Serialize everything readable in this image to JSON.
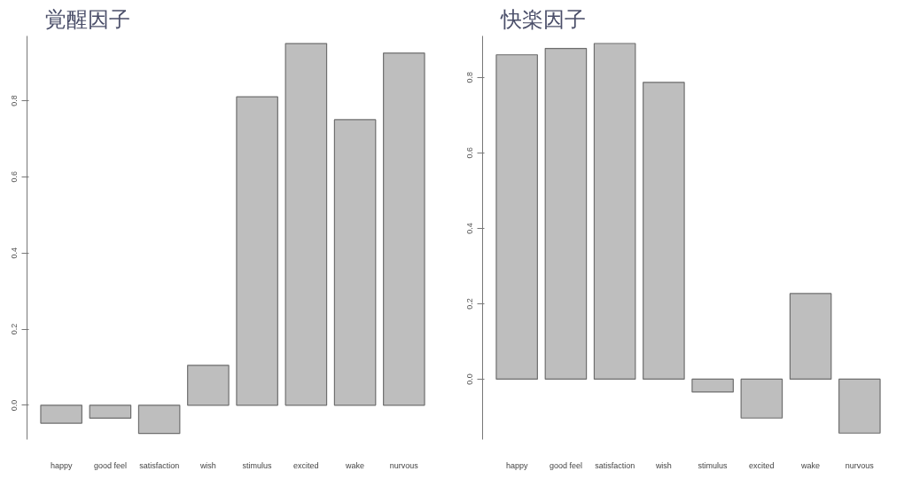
{
  "chart_data": [
    {
      "type": "bar",
      "title": "覚醒因子",
      "categories": [
        "happy",
        "good feel",
        "satisfaction",
        "wish",
        "stimulus",
        "excited",
        "wake",
        "nurvous"
      ],
      "values": [
        -0.047,
        -0.034,
        -0.074,
        0.105,
        0.81,
        0.95,
        0.75,
        0.925
      ],
      "color": "#bebebe",
      "ylim": [
        -0.09,
        0.97
      ],
      "yticks": [
        {
          "value": 0,
          "label": "0.0"
        },
        0.2,
        0.4,
        0.6,
        0.8
      ]
    },
    {
      "type": "bar",
      "title": "快楽因子",
      "categories": [
        "happy",
        "good feel",
        "satisfaction",
        "wish",
        "stimulus",
        "excited",
        "wake",
        "nurvous"
      ],
      "values": [
        0.86,
        0.877,
        0.89,
        0.787,
        -0.034,
        -0.103,
        0.227,
        -0.143
      ],
      "color": "#bebebe",
      "ylim": [
        -0.16,
        0.91
      ],
      "yticks": [
        {
          "value": 0,
          "label": "0.0"
        },
        0.2,
        0.4,
        0.6,
        0.8
      ]
    }
  ]
}
